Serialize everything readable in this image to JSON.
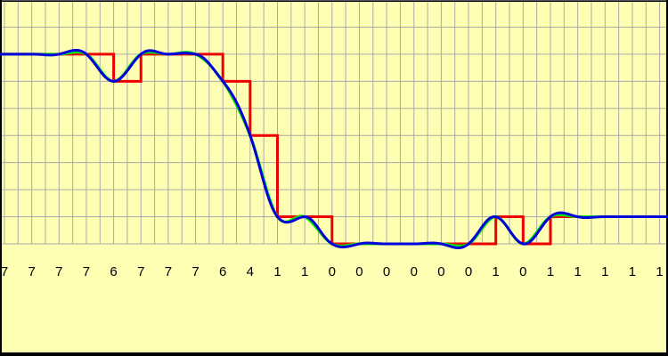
{
  "chart_data": {
    "type": "step",
    "categories": [
      "7",
      "7",
      "7",
      "7",
      "6",
      "7",
      "7",
      "7",
      "6",
      "4",
      "1",
      "1",
      "0",
      "0",
      "0",
      "0",
      "0",
      "0",
      "1",
      "0",
      "1",
      "1",
      "1",
      "1",
      "1"
    ],
    "values": [
      7,
      7,
      7,
      7,
      6,
      7,
      7,
      7,
      6,
      4,
      1,
      1,
      0,
      0,
      0,
      0,
      0,
      0,
      1,
      0,
      1,
      1,
      1,
      1,
      1
    ],
    "ylim": [
      0,
      9
    ],
    "yticks": [
      0,
      1,
      2,
      3,
      4,
      5,
      6,
      7,
      8,
      9
    ],
    "grid": true,
    "step_color": "#ee0000",
    "smooth_colors": [
      "#00ee00",
      "#0000dd"
    ]
  }
}
